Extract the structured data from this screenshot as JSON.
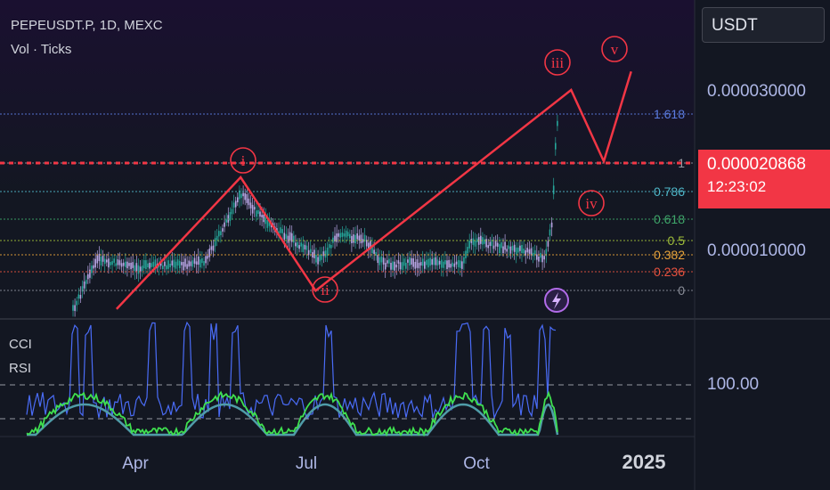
{
  "header": {
    "symbol_line": "PEPEUSDT.P, 1D, MEXC",
    "volume_line": "Vol · Ticks"
  },
  "currency_selector": "USDT",
  "price_axis": {
    "labels": [
      "0.000030000",
      "0.000010000"
    ],
    "current_price": "0.000020868",
    "countdown": "12:23:02"
  },
  "indicator_pane": {
    "labels": [
      "CCI",
      "RSI"
    ],
    "axis_label": "100.00"
  },
  "time_axis": {
    "labels": [
      "Apr",
      "Jul",
      "Oct",
      "2025"
    ]
  },
  "fib_levels": [
    {
      "label": "1.618",
      "color": "#5b7be0"
    },
    {
      "label": "1",
      "color": "#9598a1"
    },
    {
      "label": "0.786",
      "color": "#4fb7c9"
    },
    {
      "label": "0.618",
      "color": "#3fa66a"
    },
    {
      "label": "0.5",
      "color": "#9fbd3a"
    },
    {
      "label": "0.382",
      "color": "#e8a33a"
    },
    {
      "label": "0.236",
      "color": "#e8523f"
    },
    {
      "label": "0",
      "color": "#8a8e99"
    }
  ],
  "wave_labels": [
    "i",
    "ii",
    "iii",
    "iv",
    "v"
  ],
  "colors": {
    "background": "#131722",
    "wave": "#f23645",
    "up_candle": "#26a69a",
    "down_candle": "#b9a7e6",
    "cci": "#4a6cf7",
    "rsi": "#3fe04f",
    "ma": "#4f9ca8"
  },
  "chart_data": {
    "type": "line",
    "title": "PEPEUSDT.P, 1D, MEXC",
    "scale": "log",
    "y_axis_ticks": [
      3e-05,
      1e-05
    ],
    "x_axis_ticks": [
      "Apr",
      "Jul",
      "Oct",
      "2025"
    ],
    "current_price": 2.0868e-05,
    "elliott_wave_projection": [
      {
        "label": "start",
        "date": "2024-03-22",
        "price": 6.8e-06
      },
      {
        "label": "i",
        "date": "2024-05-27",
        "price": 1.66e-05
      },
      {
        "label": "ii",
        "date": "2024-07-06",
        "price": 7.7e-06
      },
      {
        "label": "iii",
        "date": "2024-11-22",
        "price": 3e-05
      },
      {
        "label": "iv",
        "date": "2024-12-10",
        "price": 1.85e-05
      },
      {
        "label": "v",
        "date": "2024-12-25",
        "price": 3.4e-05
      }
    ]
  }
}
